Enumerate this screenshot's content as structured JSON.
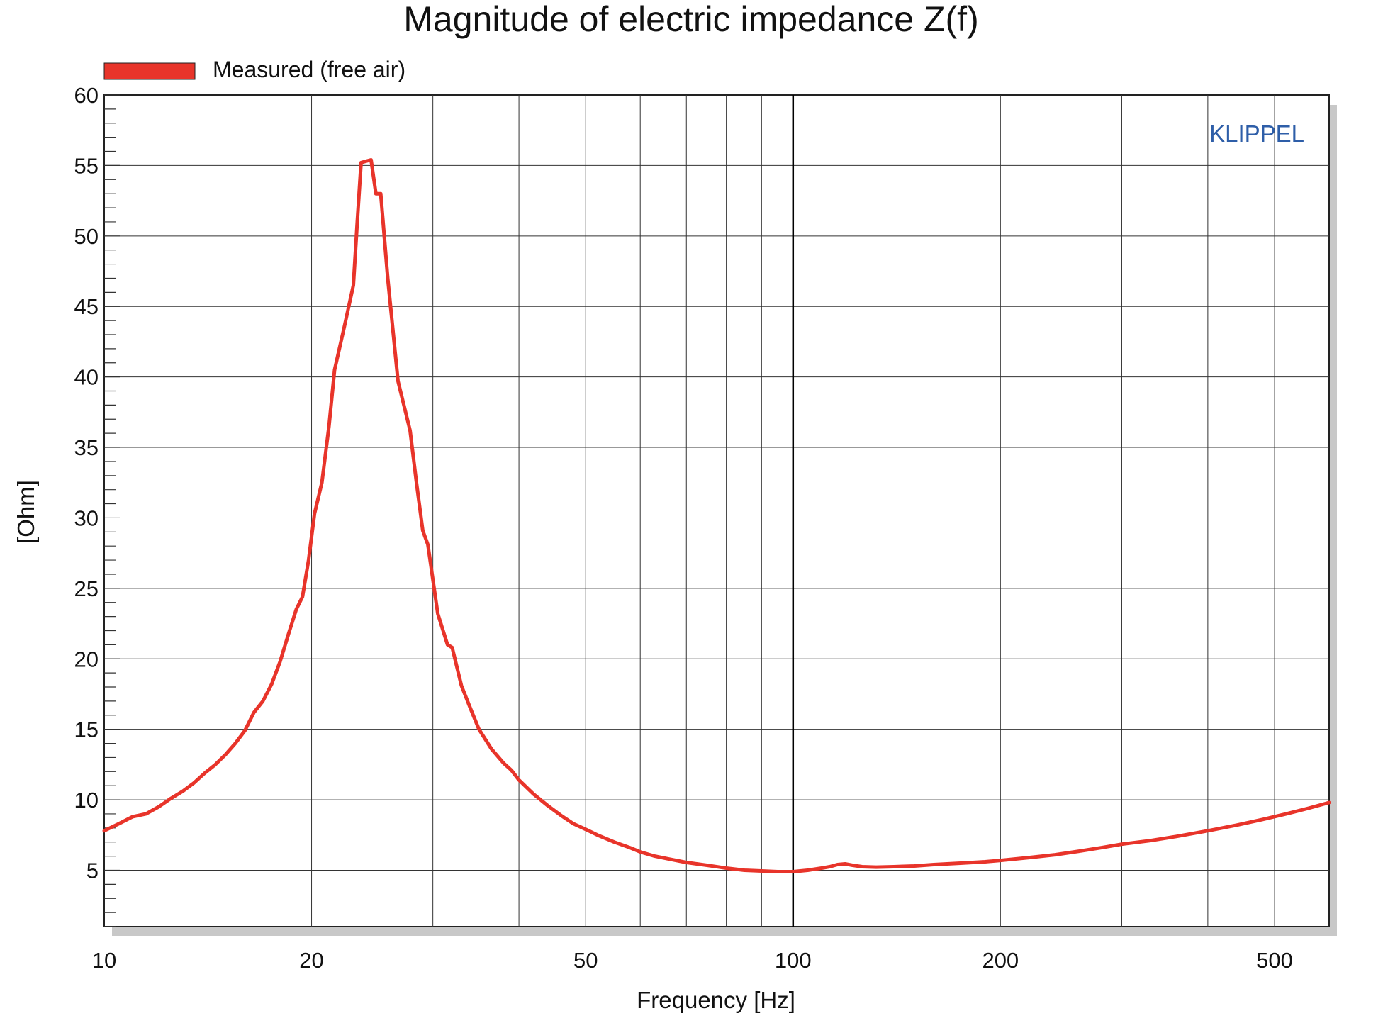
{
  "chart_data": {
    "type": "line",
    "title": "Magnitude of electric impedance Z(f)",
    "xlabel": "Frequency [Hz]",
    "ylabel": "[Ohm]",
    "watermark": "KLIPPEL",
    "x_scale": "log",
    "xlim": [
      10,
      600
    ],
    "ylim": [
      1,
      60
    ],
    "x_tick_labels": [
      {
        "value": 10,
        "label": "10"
      },
      {
        "value": 20,
        "label": "20"
      },
      {
        "value": 50,
        "label": "50"
      },
      {
        "value": 100,
        "label": "100"
      },
      {
        "value": 200,
        "label": "200"
      },
      {
        "value": 500,
        "label": "500"
      }
    ],
    "x_minor_gridlines": [
      30,
      40,
      60,
      70,
      80,
      90,
      300,
      400
    ],
    "x_emphasized_gridline": 100,
    "y_ticks": [
      5,
      10,
      15,
      20,
      25,
      30,
      35,
      40,
      45,
      50,
      55,
      60
    ],
    "y_minor_tick_step": 1,
    "grid": true,
    "legend": {
      "placement": "top-left",
      "entries": [
        "Measured (free air)"
      ]
    },
    "colors": {
      "series": "#e8342a",
      "watermark": "#2e5ea8",
      "grid": "#333333",
      "shadow": "#c8c8c8"
    },
    "series": [
      {
        "name": "Measured (free air)",
        "points": [
          [
            10,
            7.8
          ],
          [
            10.5,
            8.3
          ],
          [
            11,
            8.8
          ],
          [
            11.5,
            9.0
          ],
          [
            12,
            9.5
          ],
          [
            12.5,
            10.1
          ],
          [
            13,
            10.6
          ],
          [
            13.5,
            11.2
          ],
          [
            14,
            11.9
          ],
          [
            14.5,
            12.5
          ],
          [
            15,
            13.2
          ],
          [
            15.5,
            14.0
          ],
          [
            16,
            14.9
          ],
          [
            16.5,
            16.2
          ],
          [
            17,
            17.0
          ],
          [
            17.5,
            18.2
          ],
          [
            18,
            19.8
          ],
          [
            18.5,
            21.7
          ],
          [
            19,
            23.5
          ],
          [
            19.4,
            24.4
          ],
          [
            19.8,
            27.0
          ],
          [
            20.2,
            30.3
          ],
          [
            20.7,
            32.5
          ],
          [
            21.2,
            36.5
          ],
          [
            21.6,
            40.5
          ],
          [
            22.3,
            43.5
          ],
          [
            23.0,
            46.5
          ],
          [
            23.3,
            51.0
          ],
          [
            23.6,
            55.2
          ],
          [
            24.0,
            55.3
          ],
          [
            24.4,
            55.4
          ],
          [
            24.8,
            53.0
          ],
          [
            25.2,
            53.0
          ],
          [
            25.8,
            47.0
          ],
          [
            26.7,
            39.7
          ],
          [
            27.8,
            36.2
          ],
          [
            28.4,
            32.5
          ],
          [
            29.0,
            29.1
          ],
          [
            29.5,
            28.1
          ],
          [
            30.5,
            23.2
          ],
          [
            31.5,
            21.0
          ],
          [
            32.0,
            20.8
          ],
          [
            33.0,
            18.1
          ],
          [
            34.0,
            16.5
          ],
          [
            35.0,
            15.0
          ],
          [
            36.5,
            13.6
          ],
          [
            38,
            12.6
          ],
          [
            39,
            12.1
          ],
          [
            40,
            11.4
          ],
          [
            42,
            10.4
          ],
          [
            44,
            9.6
          ],
          [
            46,
            8.9
          ],
          [
            48,
            8.3
          ],
          [
            50,
            7.9
          ],
          [
            52,
            7.5
          ],
          [
            55,
            7.0
          ],
          [
            58,
            6.6
          ],
          [
            60,
            6.3
          ],
          [
            63,
            6.0
          ],
          [
            66,
            5.8
          ],
          [
            70,
            5.55
          ],
          [
            75,
            5.35
          ],
          [
            80,
            5.15
          ],
          [
            85,
            5.0
          ],
          [
            90,
            4.95
          ],
          [
            95,
            4.9
          ],
          [
            100,
            4.9
          ],
          [
            105,
            5.0
          ],
          [
            110,
            5.15
          ],
          [
            113,
            5.25
          ],
          [
            116,
            5.4
          ],
          [
            119,
            5.45
          ],
          [
            122,
            5.35
          ],
          [
            126,
            5.25
          ],
          [
            132,
            5.22
          ],
          [
            140,
            5.25
          ],
          [
            150,
            5.3
          ],
          [
            160,
            5.4
          ],
          [
            175,
            5.5
          ],
          [
            190,
            5.6
          ],
          [
            200,
            5.7
          ],
          [
            220,
            5.9
          ],
          [
            240,
            6.1
          ],
          [
            260,
            6.35
          ],
          [
            280,
            6.6
          ],
          [
            300,
            6.85
          ],
          [
            330,
            7.1
          ],
          [
            360,
            7.4
          ],
          [
            400,
            7.8
          ],
          [
            440,
            8.2
          ],
          [
            480,
            8.6
          ],
          [
            520,
            9.0
          ],
          [
            560,
            9.4
          ],
          [
            600,
            9.8
          ]
        ]
      }
    ]
  }
}
